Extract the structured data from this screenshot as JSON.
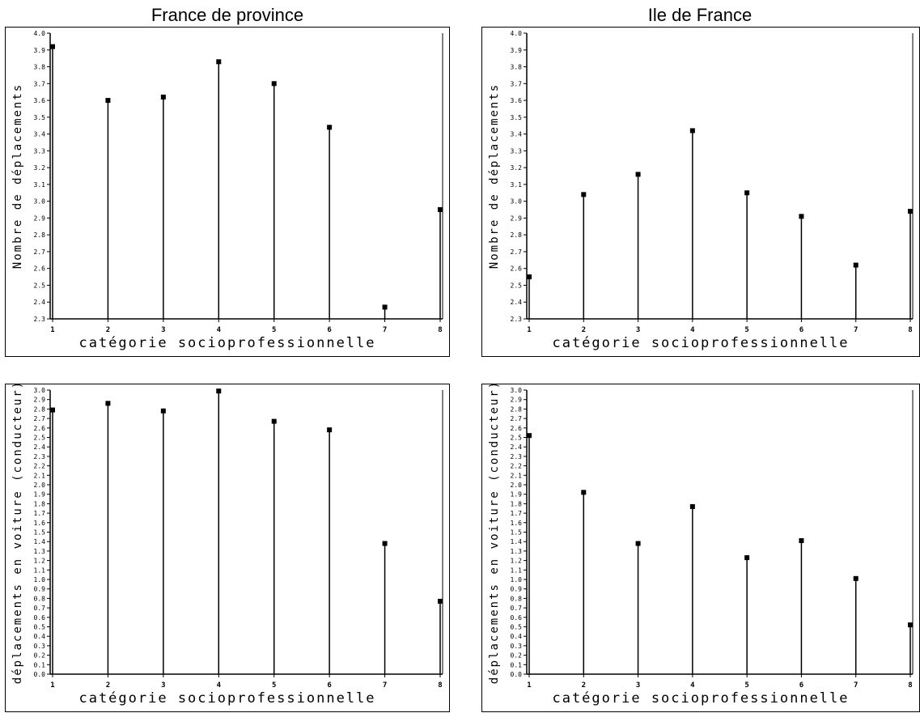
{
  "titles": {
    "left": "France de province",
    "right": "Ile de France"
  },
  "chart_data": [
    {
      "type": "bar",
      "style": "needle",
      "column": "France de province",
      "title": "",
      "xlabel": "catégorie socioprofessionnelle",
      "ylabel": "Nombre de déplacements",
      "categories": [
        "1",
        "2",
        "3",
        "4",
        "5",
        "6",
        "7",
        "8"
      ],
      "values": [
        3.92,
        3.6,
        3.62,
        3.83,
        3.7,
        3.44,
        2.37,
        2.95
      ],
      "ylim": [
        2.3,
        4.0
      ],
      "yticks": [
        "2.3",
        "2.4",
        "2.5",
        "2.6",
        "2.7",
        "2.8",
        "2.9",
        "3.0",
        "3.1",
        "3.2",
        "3.3",
        "3.4",
        "3.5",
        "3.6",
        "3.7",
        "3.8",
        "3.9",
        "4.0"
      ],
      "grid": false
    },
    {
      "type": "bar",
      "style": "needle",
      "column": "Ile de France",
      "title": "",
      "xlabel": "catégorie socioprofessionnelle",
      "ylabel": "Nombre de déplacements",
      "categories": [
        "1",
        "2",
        "3",
        "4",
        "5",
        "6",
        "7",
        "8"
      ],
      "values": [
        2.55,
        3.04,
        3.16,
        3.42,
        3.05,
        2.91,
        2.62,
        2.94
      ],
      "ylim": [
        2.3,
        4.0
      ],
      "yticks": [
        "2.3",
        "2.4",
        "2.5",
        "2.6",
        "2.7",
        "2.8",
        "2.9",
        "3.0",
        "3.1",
        "3.2",
        "3.3",
        "3.4",
        "3.5",
        "3.6",
        "3.7",
        "3.8",
        "3.9",
        "4.0"
      ],
      "grid": false
    },
    {
      "type": "bar",
      "style": "needle",
      "column": "France de province",
      "title": "",
      "xlabel": "catégorie socioprofessionnelle",
      "ylabel": "déplacements en voiture (conducteur)",
      "categories": [
        "1",
        "2",
        "3",
        "4",
        "5",
        "6",
        "7",
        "8"
      ],
      "values": [
        2.79,
        2.86,
        2.78,
        2.99,
        2.67,
        2.58,
        1.38,
        0.77
      ],
      "ylim": [
        0.0,
        3.0
      ],
      "yticks": [
        "0.0",
        "0.1",
        "0.2",
        "0.3",
        "0.4",
        "0.5",
        "0.6",
        "0.7",
        "0.8",
        "0.9",
        "1.0",
        "1.1",
        "1.2",
        "1.3",
        "1.4",
        "1.5",
        "1.6",
        "1.7",
        "1.8",
        "1.9",
        "2.0",
        "2.1",
        "2.2",
        "2.3",
        "2.4",
        "2.5",
        "2.6",
        "2.7",
        "2.8",
        "2.9",
        "3.0"
      ],
      "grid": false
    },
    {
      "type": "bar",
      "style": "needle",
      "column": "Ile de France",
      "title": "",
      "xlabel": "catégorie socioprofessionnelle",
      "ylabel": "déplacements en voiture (conducteur)",
      "categories": [
        "1",
        "2",
        "3",
        "4",
        "5",
        "6",
        "7",
        "8"
      ],
      "values": [
        2.52,
        1.92,
        1.38,
        1.77,
        1.23,
        1.41,
        1.01,
        0.52
      ],
      "ylim": [
        0.0,
        3.0
      ],
      "yticks": [
        "0.0",
        "0.1",
        "0.2",
        "0.3",
        "0.4",
        "0.5",
        "0.6",
        "0.7",
        "0.8",
        "0.9",
        "1.0",
        "1.1",
        "1.2",
        "1.3",
        "1.4",
        "1.5",
        "1.6",
        "1.7",
        "1.8",
        "1.9",
        "2.0",
        "2.1",
        "2.2",
        "2.3",
        "2.4",
        "2.5",
        "2.6",
        "2.7",
        "2.8",
        "2.9",
        "3.0"
      ],
      "grid": false
    }
  ]
}
